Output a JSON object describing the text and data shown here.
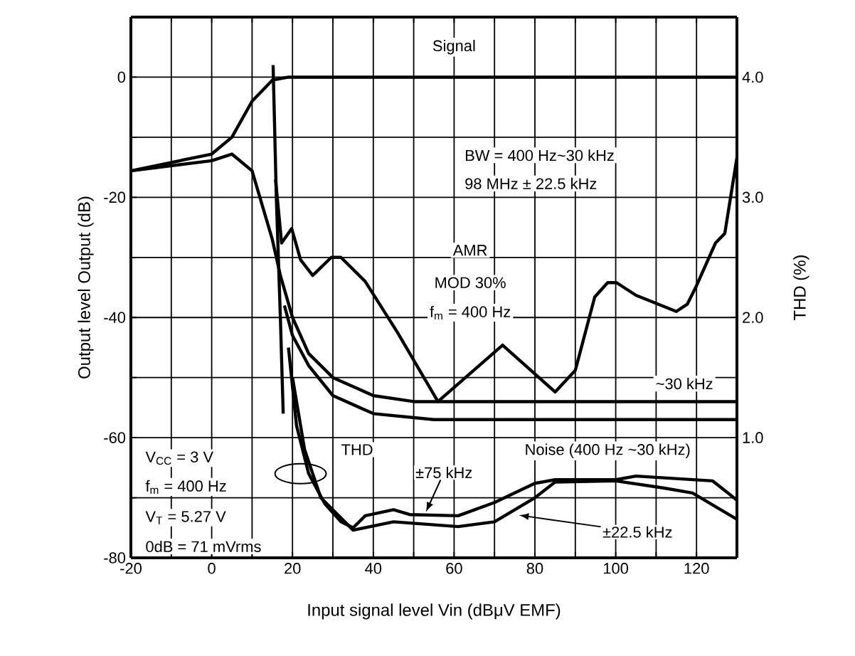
{
  "chart_data": {
    "type": "line",
    "xlabel": "Input signal level    Vin    (dBμV EMF)",
    "ylabel": "Output level    Output    (dB)",
    "y2label": "THD    (%)",
    "xlim": [
      -20,
      130
    ],
    "ylim": [
      -80,
      10
    ],
    "y2lim": [
      0,
      4.5
    ],
    "xticks": [
      -20,
      {
        "value": -10,
        "label": null
      },
      0,
      {
        "value": 10,
        "label": null
      },
      20,
      {
        "value": 30,
        "label": null
      },
      40,
      {
        "value": 50,
        "label": null
      },
      60,
      {
        "value": 70,
        "label": null
      },
      80,
      {
        "value": 90,
        "label": null
      },
      100,
      {
        "value": 110,
        "label": null
      },
      120
    ],
    "yticks": [
      -80,
      {
        "value": -70,
        "label": null
      },
      -60,
      {
        "value": -50,
        "label": null
      },
      -40,
      {
        "value": -30,
        "label": null
      },
      -20,
      {
        "value": -10,
        "label": null
      },
      0
    ],
    "y2ticks": [
      {
        "value": 1,
        "label": "1.0"
      },
      {
        "value": 2,
        "label": "2.0"
      },
      {
        "value": 3,
        "label": "3.0"
      },
      {
        "value": 4,
        "label": "4.0"
      }
    ],
    "grid": true,
    "series": [
      {
        "color": "#000000",
        "x": [
          -20,
          0,
          5,
          10,
          15,
          19,
          130
        ],
        "values": [
          -15.6,
          -12.8,
          -10,
          -4,
          -0.5,
          0,
          0
        ]
      },
      {
        "color": "#000000",
        "x": [
          -20,
          0,
          5,
          10,
          15,
          17,
          20,
          24,
          30,
          40,
          50,
          130
        ],
        "values": [
          -15.6,
          -13.9,
          -12.8,
          -15.6,
          -27,
          -33,
          -40,
          -46,
          -50,
          -53,
          -54,
          -54
        ]
      },
      {
        "color": "#000000",
        "x": [
          15.2,
          16,
          17,
          17.7
        ],
        "values": [
          2,
          -20,
          -40,
          -56
        ]
      },
      {
        "color": "#000000",
        "x": [
          18,
          20,
          24,
          30,
          40,
          55,
          130
        ],
        "values": [
          -38,
          -43,
          -48,
          -53,
          -56,
          -57,
          -57
        ]
      },
      {
        "color": "#000000",
        "x": [
          15.8,
          17.3,
          19.8,
          22,
          25,
          29.6,
          32,
          38,
          46,
          56,
          72,
          85,
          90,
          94.8,
          98,
          100.2,
          105,
          115,
          117.7,
          120,
          124.7,
          127,
          130
        ],
        "values": [
          -17,
          -27.6,
          -25.2,
          -30.4,
          -33,
          -30,
          -30,
          -34,
          -42.5,
          -54,
          -44.6,
          -52.4,
          -48.8,
          -36.6,
          -34.2,
          -34.2,
          -36.3,
          -39,
          -37.8,
          -34.7,
          -27.6,
          -26,
          -13.4
        ]
      },
      {
        "color": "#000000",
        "axis": "y2",
        "x": [
          19,
          21,
          24,
          28,
          32,
          35,
          38,
          45,
          49,
          61,
          70,
          80,
          85,
          100,
          105,
          124,
          130
        ],
        "values": [
          1.75,
          1.1,
          0.7,
          0.45,
          0.3,
          0.25,
          0.35,
          0.4,
          0.36,
          0.35,
          0.46,
          0.62,
          0.65,
          0.65,
          0.68,
          0.64,
          0.48
        ]
      },
      {
        "color": "#000000",
        "axis": "y2",
        "x": [
          20,
          23,
          27,
          35,
          45,
          61,
          70,
          80,
          85,
          100,
          112,
          119,
          130
        ],
        "values": [
          1.5,
          0.9,
          0.5,
          0.23,
          0.3,
          0.26,
          0.3,
          0.5,
          0.63,
          0.64,
          0.58,
          0.54,
          0.32
        ]
      }
    ],
    "annotations": [
      "Signal",
      "BW = 400 Hz~30 kHz",
      "98 MHz ± 22.5 kHz",
      "AMR",
      "MOD 30%",
      "f$_{m}$ = 400 Hz",
      "~30 kHz",
      "Noise (400 Hz ~30 kHz)",
      "THD",
      {
        "text": "±75 kHz",
        "x": 53,
        "y": -72.4
      },
      {
        "text": "±22.5 kHz",
        "x": 76,
        "y": -72.9
      },
      "V$_{CC}$ = 3 V",
      "f$_{m}$ = 400 Hz",
      "V$_{T}$ = 5.27 V",
      "0dB = 71 mVrms"
    ]
  }
}
